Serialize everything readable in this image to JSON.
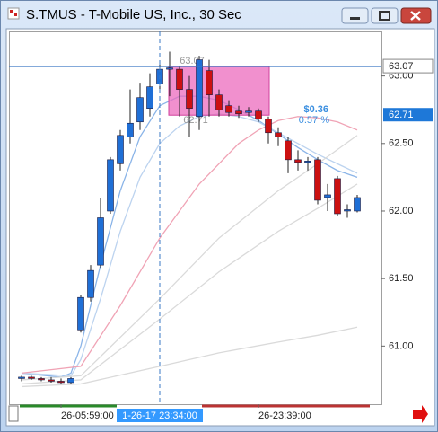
{
  "window": {
    "title": "S.TMUS - T-Mobile US, Inc., 30 Sec"
  },
  "chart_data": {
    "type": "candlestick",
    "up_color": "#1f6fd6",
    "down_color": "#cc1111",
    "open": [
      60.76,
      60.77,
      60.76,
      60.75,
      60.74,
      60.73,
      61.12,
      61.36,
      61.6,
      62.0,
      62.35,
      62.55,
      62.66,
      62.76,
      62.94,
      63.06,
      63.05,
      62.9,
      62.7,
      63.04,
      62.86,
      62.78,
      62.74,
      62.73,
      62.74,
      62.68,
      62.58,
      62.52,
      62.38,
      62.36,
      62.38,
      62.1,
      62.24,
      62.0,
      62.0
    ],
    "high": [
      60.78,
      60.78,
      60.77,
      60.77,
      60.76,
      60.77,
      61.38,
      61.6,
      62.1,
      62.4,
      62.6,
      62.9,
      62.95,
      63.02,
      63.1,
      63.18,
      63.07,
      63.0,
      63.15,
      63.12,
      62.9,
      62.82,
      62.78,
      62.77,
      62.76,
      62.7,
      62.62,
      62.55,
      62.45,
      62.4,
      62.4,
      62.2,
      62.26,
      62.05,
      62.12
    ],
    "low": [
      60.74,
      60.75,
      60.74,
      60.73,
      60.72,
      60.72,
      61.1,
      61.33,
      61.58,
      61.98,
      62.3,
      62.5,
      62.6,
      62.7,
      62.9,
      62.85,
      62.7,
      62.55,
      62.6,
      62.7,
      62.7,
      62.7,
      62.69,
      62.7,
      62.66,
      62.5,
      62.48,
      62.28,
      62.3,
      62.3,
      62.05,
      62.0,
      61.96,
      61.95,
      61.99
    ],
    "close": [
      60.77,
      60.76,
      60.75,
      60.74,
      60.73,
      60.76,
      61.36,
      61.56,
      61.95,
      62.38,
      62.56,
      62.65,
      62.84,
      62.92,
      63.05,
      63.06,
      62.9,
      62.76,
      63.12,
      62.86,
      62.75,
      62.73,
      62.72,
      62.74,
      62.68,
      62.58,
      62.55,
      62.38,
      62.36,
      62.37,
      62.08,
      62.12,
      61.98,
      62.01,
      62.1
    ],
    "moving_averages": [
      {
        "color": "#8ab4e8",
        "x": [
          0,
          4,
          5,
          6,
          8,
          10,
          12,
          14,
          16,
          18,
          20,
          22,
          24,
          26,
          28,
          30,
          32,
          34
        ],
        "values": [
          60.8,
          60.77,
          60.8,
          61.0,
          61.6,
          62.15,
          62.55,
          62.78,
          62.85,
          62.85,
          62.82,
          62.75,
          62.67,
          62.57,
          62.47,
          62.38,
          62.3,
          62.25
        ]
      },
      {
        "color": "#bcd3ef",
        "x": [
          0,
          5,
          6,
          8,
          10,
          12,
          14,
          16,
          18,
          20,
          22,
          24,
          26,
          28,
          30,
          32,
          34
        ],
        "values": [
          60.8,
          60.78,
          60.9,
          61.35,
          61.85,
          62.25,
          62.5,
          62.63,
          62.7,
          62.72,
          62.7,
          62.66,
          62.58,
          62.5,
          62.42,
          62.35,
          62.28
        ]
      },
      {
        "color": "#f0a3b5",
        "x": [
          0,
          6,
          10,
          14,
          18,
          22,
          24,
          26,
          28,
          30,
          32,
          34
        ],
        "values": [
          60.8,
          60.85,
          61.3,
          61.8,
          62.2,
          62.5,
          62.6,
          62.67,
          62.7,
          62.69,
          62.66,
          62.6
        ]
      },
      {
        "color": "#dadada",
        "x": [
          0,
          6,
          14,
          20,
          26,
          30,
          34
        ],
        "values": [
          60.75,
          60.78,
          61.35,
          61.8,
          62.15,
          62.35,
          62.56
        ]
      },
      {
        "color": "#dadada",
        "x": [
          0,
          6,
          14,
          20,
          26,
          30,
          34
        ],
        "values": [
          60.72,
          60.75,
          61.2,
          61.55,
          61.85,
          62.02,
          62.2
        ]
      },
      {
        "color": "#dadada",
        "x": [
          0,
          6,
          14,
          20,
          26,
          30,
          34
        ],
        "values": [
          60.7,
          60.72,
          60.85,
          60.95,
          61.03,
          61.08,
          61.14
        ]
      }
    ],
    "ylim": [
      60.57,
      63.33
    ],
    "yticks": [
      {
        "value": 63,
        "label": "63.00"
      },
      {
        "value": 62.5,
        "label": "62.50"
      },
      {
        "value": 62,
        "label": "62.00"
      },
      {
        "value": 61.5,
        "label": "61.50"
      },
      {
        "value": 61,
        "label": "61.00"
      }
    ],
    "xtick_labels": [
      {
        "index": 4,
        "label": "26-05:59:00"
      },
      {
        "index": 24,
        "label": "26-23:39:00"
      }
    ],
    "crosshair": {
      "price": 63.07,
      "index": 14,
      "time_label": "1-26-17 23:34:00"
    },
    "last_price": 62.71,
    "measure": {
      "top": 63.07,
      "bottom": 62.71,
      "change": "$0.36",
      "percent": "0.57 %"
    }
  }
}
